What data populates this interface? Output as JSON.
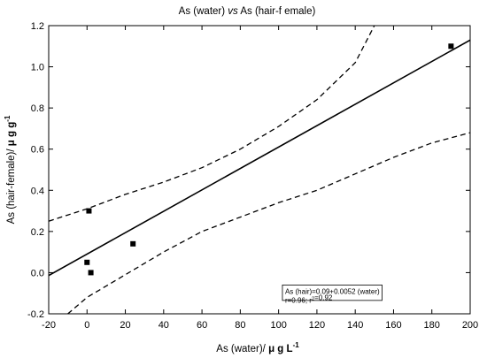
{
  "chart_data": {
    "type": "scatter",
    "title": "As (water) vs As (hair-female)",
    "title_parts": [
      {
        "text": "As (water) ",
        "italic": false
      },
      {
        "text": "vs",
        "italic": true
      },
      {
        "text": " As (hair-f emale)",
        "italic": false
      }
    ],
    "xlabel": "As (water)/ μ g L⁻¹",
    "xlabel_parts": [
      {
        "text": "As (water)/ ",
        "bold": false
      },
      {
        "text": "μ g L",
        "bold": true
      },
      {
        "text": "-1",
        "bold": true,
        "sup": true
      }
    ],
    "ylabel": "As (hair-female)/ μ g g⁻¹",
    "ylabel_parts": [
      {
        "text": "As (hair-female)/ ",
        "bold": false
      },
      {
        "text": "μ g g",
        "bold": true
      },
      {
        "text": "-1",
        "bold": true,
        "sup": true
      }
    ],
    "xlim": [
      -20,
      200
    ],
    "ylim": [
      -0.2,
      1.2
    ],
    "xticks": [
      -20,
      0,
      20,
      40,
      60,
      80,
      100,
      120,
      140,
      160,
      180,
      200
    ],
    "yticks": [
      -0.2,
      0.0,
      0.2,
      0.4,
      0.6,
      0.8,
      1.0,
      1.2
    ],
    "grid": false,
    "series": [
      {
        "kind": "points",
        "marker": "square",
        "x": [
          1,
          0,
          2,
          24,
          190
        ],
        "y": [
          0.3,
          0.05,
          0.0,
          0.14,
          1.1
        ]
      },
      {
        "kind": "regression-line",
        "intercept": 0.09,
        "slope": 0.0052
      },
      {
        "kind": "confidence-band",
        "style": "dashed",
        "upper": {
          "x": [
            -20,
            -10,
            0,
            20,
            40,
            60,
            80,
            100,
            120,
            140,
            150
          ],
          "y": [
            0.25,
            0.28,
            0.31,
            0.38,
            0.44,
            0.51,
            0.6,
            0.71,
            0.84,
            1.02,
            1.2
          ]
        },
        "lower": {
          "x": [
            -10,
            0,
            20,
            40,
            60,
            80,
            100,
            120,
            140,
            160,
            180,
            200
          ],
          "y": [
            -0.2,
            -0.12,
            -0.01,
            0.1,
            0.2,
            0.27,
            0.34,
            0.4,
            0.48,
            0.56,
            0.63,
            0.68
          ]
        }
      }
    ],
    "annotation": {
      "line1": "As (hair)=0.09+0.0052 (water)",
      "line2_parts": [
        {
          "text": "r=0.96; r"
        },
        {
          "text": "2",
          "sup": true
        },
        {
          "text": "=0.92"
        }
      ],
      "box_x": [
        102,
        154
      ],
      "box_y": [
        -0.06,
        -0.135
      ]
    }
  }
}
